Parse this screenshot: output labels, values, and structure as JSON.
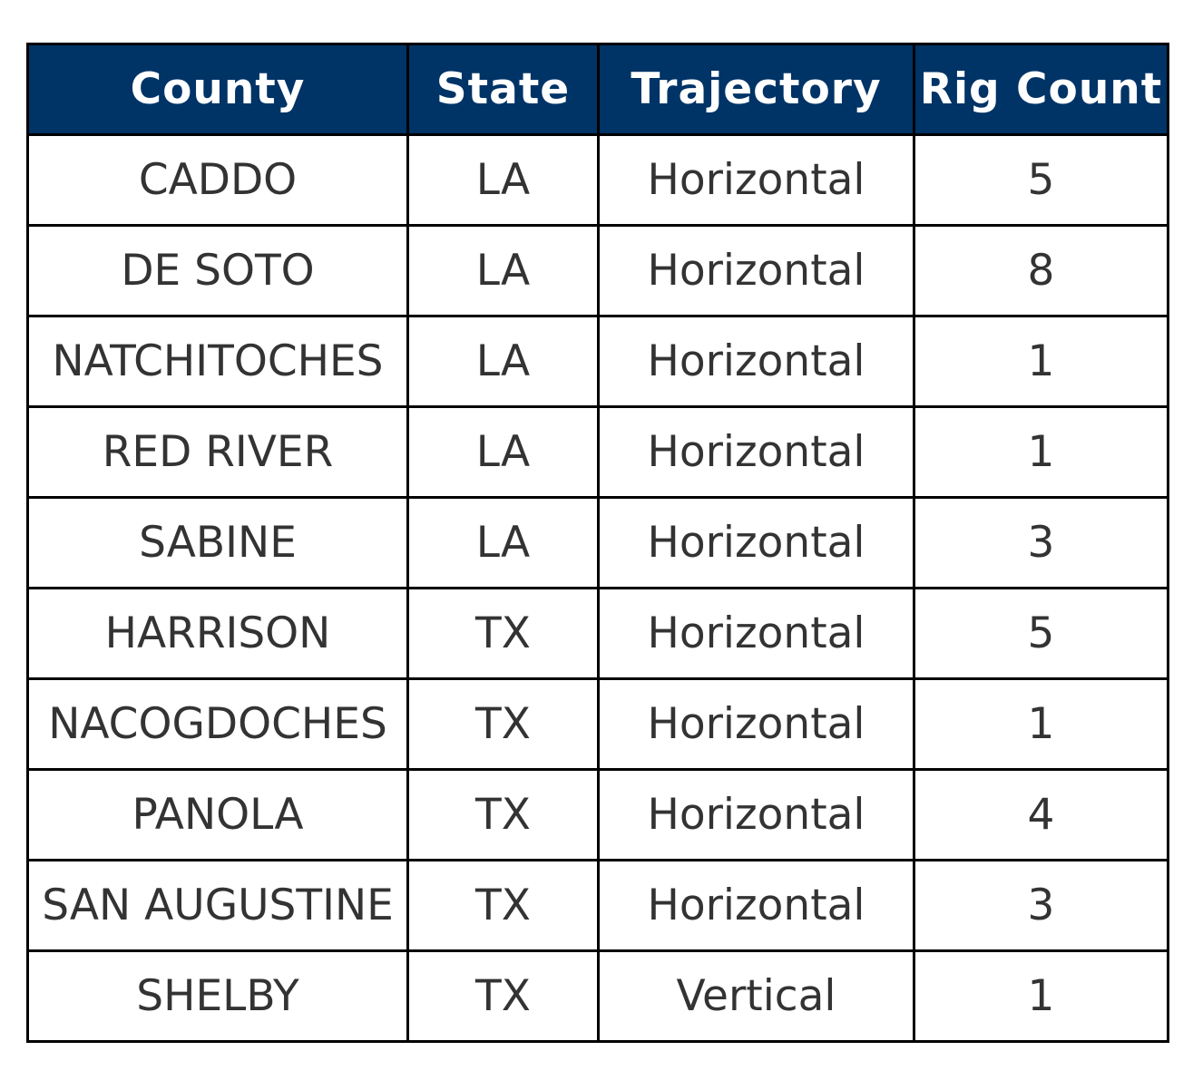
{
  "chart_data": {
    "type": "table",
    "columns": [
      "County",
      "State",
      "Trajectory",
      "Rig Count"
    ],
    "rows": [
      [
        "CADDO",
        "LA",
        "Horizontal",
        "5"
      ],
      [
        "DE SOTO",
        "LA",
        "Horizontal",
        "8"
      ],
      [
        "NATCHITOCHES",
        "LA",
        "Horizontal",
        "1"
      ],
      [
        "RED RIVER",
        "LA",
        "Horizontal",
        "1"
      ],
      [
        "SABINE",
        "LA",
        "Horizontal",
        "3"
      ],
      [
        "HARRISON",
        "TX",
        "Horizontal",
        "5"
      ],
      [
        "NACOGDOCHES",
        "TX",
        "Horizontal",
        "1"
      ],
      [
        "PANOLA",
        "TX",
        "Horizontal",
        "4"
      ],
      [
        "SAN AUGUSTINE",
        "TX",
        "Horizontal",
        "3"
      ],
      [
        "SHELBY",
        "TX",
        "Vertical",
        "1"
      ]
    ]
  },
  "colors": {
    "header_background": "#003366",
    "header_text": "#ffffff",
    "cell_text": "#333333",
    "border": "#000000"
  }
}
